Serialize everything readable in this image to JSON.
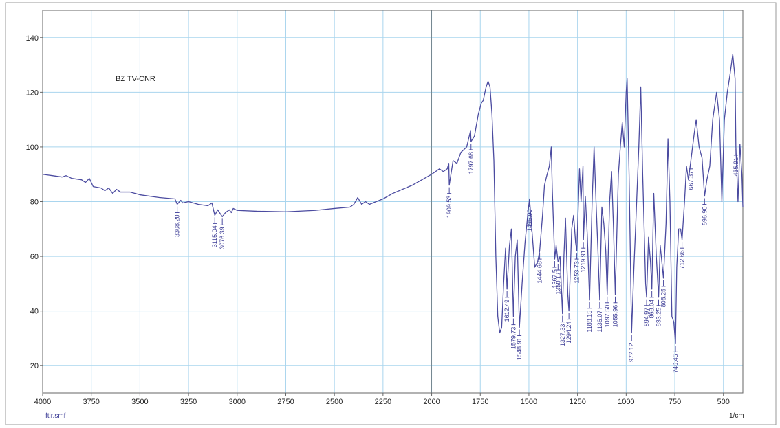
{
  "chart_data": {
    "type": "line",
    "color": "#4b4ba0",
    "grid": true,
    "annotation": "BZ TV-CNR",
    "file_label": "ftir.smf",
    "x_label": "1/cm",
    "xlim": [
      4000,
      400
    ],
    "ylim": [
      10,
      150
    ],
    "xticks": [
      4000,
      3750,
      3500,
      3250,
      3000,
      2750,
      2500,
      2250,
      2000,
      1750,
      1500,
      1250,
      1000,
      750,
      500
    ],
    "yticks": [
      20,
      40,
      60,
      80,
      100,
      120,
      140
    ],
    "x": [
      4000,
      3950,
      3900,
      3880,
      3850,
      3800,
      3780,
      3760,
      3740,
      3700,
      3680,
      3660,
      3640,
      3620,
      3600,
      3550,
      3500,
      3400,
      3320,
      3308.2,
      3290,
      3280,
      3250,
      3200,
      3150,
      3130,
      3115.04,
      3100,
      3076.39,
      3060,
      3040,
      3030,
      3020,
      3000,
      2900,
      2750,
      2600,
      2500,
      2420,
      2400,
      2380,
      2360,
      2340,
      2320,
      2250,
      2200,
      2100,
      2050,
      2000,
      1980,
      1960,
      1940,
      1920,
      1912,
      1909.53,
      1890,
      1870,
      1850,
      1820,
      1810,
      1800,
      1797.68,
      1780,
      1760,
      1745,
      1735,
      1720,
      1710,
      1700,
      1690,
      1680,
      1670,
      1660,
      1650,
      1640,
      1630,
      1620,
      1612.49,
      1600,
      1590,
      1579.73,
      1570,
      1560,
      1548.91,
      1535,
      1520,
      1505,
      1496.9,
      1485,
      1470,
      1455,
      1444.68,
      1430,
      1420,
      1410,
      1395,
      1385,
      1380,
      1367.5,
      1360,
      1350.17,
      1340,
      1327.33,
      1320,
      1312,
      1300,
      1294.24,
      1280,
      1270,
      1260,
      1253.73,
      1240,
      1232,
      1222,
      1219.91,
      1210,
      1200,
      1188.15,
      1175,
      1165,
      1155,
      1145,
      1136.07,
      1125,
      1115,
      1105,
      1097.5,
      1085,
      1075,
      1065,
      1055.96,
      1040,
      1030,
      1020,
      1010,
      1000,
      995,
      985,
      972.12,
      960,
      950,
      935,
      925,
      915,
      900,
      894.97,
      885,
      875,
      868.04,
      858,
      845,
      833.25,
      825,
      808.25,
      795,
      785,
      775,
      765,
      755,
      746.45,
      740,
      730,
      720,
      712.66,
      700,
      690,
      680,
      667.37,
      650,
      640,
      625,
      610,
      596.9,
      585,
      570,
      555,
      545,
      535,
      520,
      508,
      495,
      480,
      465,
      452,
      440,
      435.91,
      425,
      415,
      405,
      400
    ],
    "values": [
      90,
      89.5,
      89,
      89.5,
      88.5,
      88,
      87,
      88.5,
      85.5,
      85,
      84,
      85,
      83,
      84.5,
      83.5,
      83.5,
      82.5,
      81.5,
      81,
      79,
      80.5,
      79.5,
      80,
      79,
      78.5,
      79.5,
      75,
      77,
      74.5,
      76,
      77,
      76,
      77.5,
      76.8,
      76.5,
      76.3,
      76.8,
      77.5,
      78,
      79,
      81.5,
      79,
      80,
      79,
      81,
      83,
      86,
      88,
      90,
      91,
      92,
      91,
      92,
      94,
      86,
      95,
      94,
      98,
      100,
      103,
      106,
      102,
      104,
      112,
      116,
      117,
      122,
      124,
      122,
      112,
      95,
      60,
      38,
      32,
      34,
      50,
      63,
      48,
      64,
      70,
      38,
      60,
      66,
      34,
      50,
      65,
      76,
      81,
      70,
      56,
      58,
      62,
      75,
      86,
      89,
      93,
      100,
      85,
      59,
      64,
      58,
      60,
      39,
      60,
      74,
      46,
      40,
      70,
      75,
      65,
      62,
      92,
      80,
      93,
      66,
      82,
      68,
      44,
      80,
      100,
      80,
      62,
      44,
      78,
      72,
      62,
      46,
      80,
      91,
      70,
      46,
      90,
      100,
      109,
      100,
      120,
      125,
      90,
      32,
      56,
      73,
      100,
      122,
      90,
      50,
      45,
      67,
      58,
      48,
      83,
      60,
      45,
      64,
      52,
      72,
      103,
      80,
      38,
      36,
      28,
      56,
      70,
      70,
      66,
      80,
      93,
      88,
      95,
      105,
      110,
      100,
      96,
      82,
      88,
      93,
      110,
      115,
      120,
      110,
      80,
      110,
      120,
      127,
      134,
      125,
      100,
      80,
      101,
      90,
      78
    ],
    "peaks": [
      {
        "value": 3308.2,
        "label": "3308.20"
      },
      {
        "value": 3115.04,
        "label": "3115.04"
      },
      {
        "value": 3076.39,
        "label": "3076.39"
      },
      {
        "value": 1909.53,
        "label": "1909.53"
      },
      {
        "value": 1797.68,
        "label": "1797.68"
      },
      {
        "value": 1612.49,
        "label": "1612.49"
      },
      {
        "value": 1579.73,
        "label": "1579.73"
      },
      {
        "value": 1548.91,
        "label": "1548.91"
      },
      {
        "value": 1496.9,
        "label": "1496.90"
      },
      {
        "value": 1444.68,
        "label": "1444.68"
      },
      {
        "value": 1367.5,
        "label": "1367.5"
      },
      {
        "value": 1350.17,
        "label": "1350.17"
      },
      {
        "value": 1327.33,
        "label": "1327.33"
      },
      {
        "value": 1294.24,
        "label": "1294.24"
      },
      {
        "value": 1253.73,
        "label": "1253.73"
      },
      {
        "value": 1219.91,
        "label": "1219.91"
      },
      {
        "value": 1188.15,
        "label": "1188.15"
      },
      {
        "value": 1136.07,
        "label": "1136.07"
      },
      {
        "value": 1097.5,
        "label": "1097.50"
      },
      {
        "value": 1055.96,
        "label": "1055.96"
      },
      {
        "value": 972.12,
        "label": "972.12"
      },
      {
        "value": 894.97,
        "label": "894.97"
      },
      {
        "value": 868.04,
        "label": "868.04"
      },
      {
        "value": 833.25,
        "label": "833.25"
      },
      {
        "value": 808.25,
        "label": "808.25"
      },
      {
        "value": 746.45,
        "label": "746.45"
      },
      {
        "value": 712.66,
        "label": "712.66"
      },
      {
        "value": 667.37,
        "label": "667.37"
      },
      {
        "value": 596.9,
        "label": "596.90"
      },
      {
        "value": 435.91,
        "label": "435.91"
      }
    ]
  }
}
